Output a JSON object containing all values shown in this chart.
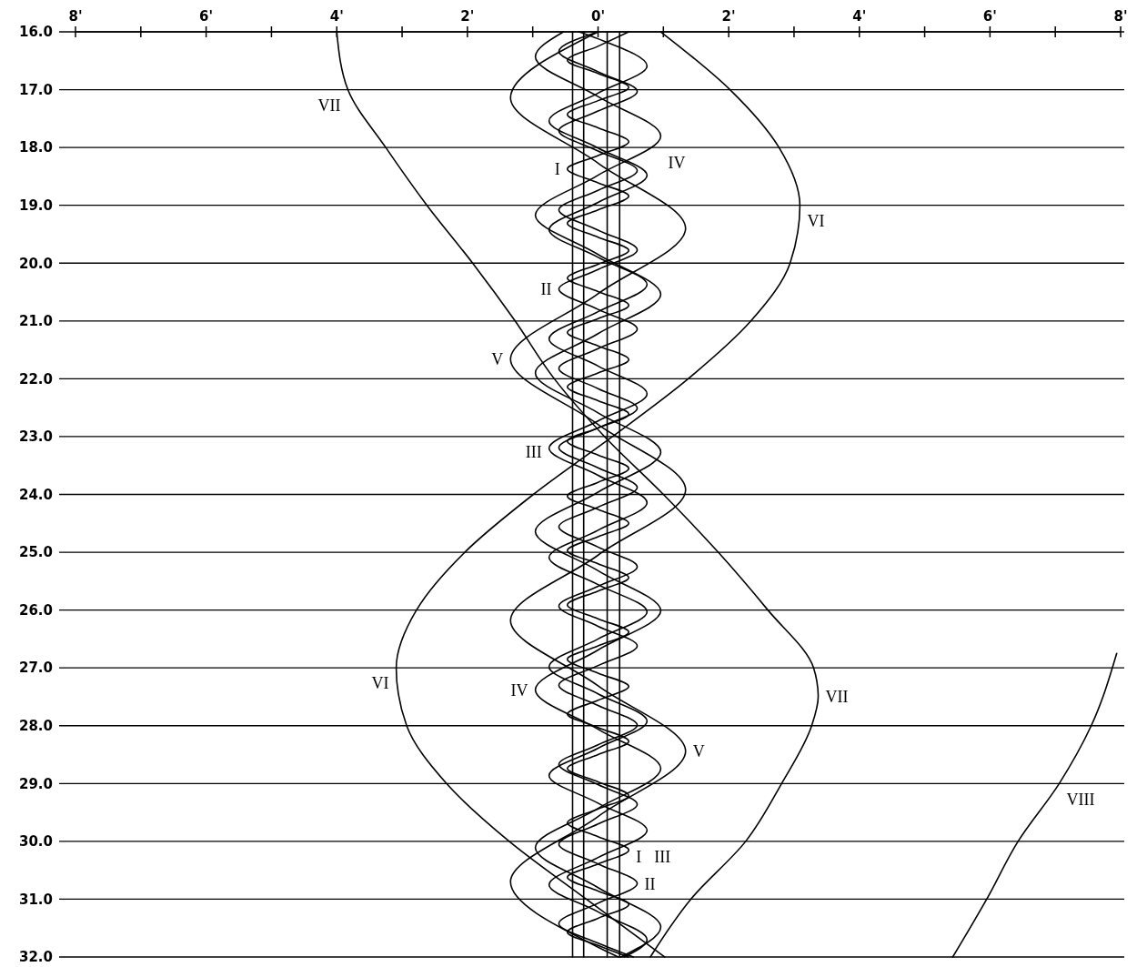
{
  "chart_data": {
    "type": "line",
    "xlim": [
      -8,
      8
    ],
    "ylim": [
      32,
      16
    ],
    "xticks": [
      {
        "value": -8,
        "label": "8'"
      },
      {
        "value": -7,
        "label": null
      },
      {
        "value": -6,
        "label": "6'"
      },
      {
        "value": -5,
        "label": null
      },
      {
        "value": -4,
        "label": "4'"
      },
      {
        "value": -3,
        "label": null
      },
      {
        "value": -2,
        "label": "2'"
      },
      {
        "value": -1,
        "label": null
      },
      {
        "value": 0,
        "label": "0'"
      },
      {
        "value": 1,
        "label": null
      },
      {
        "value": 2,
        "label": "2'"
      },
      {
        "value": 3,
        "label": null
      },
      {
        "value": 4,
        "label": "4'"
      },
      {
        "value": 5,
        "label": null
      },
      {
        "value": 6,
        "label": "6'"
      },
      {
        "value": 7,
        "label": null
      },
      {
        "value": 8,
        "label": "8'"
      }
    ],
    "yticks": [
      {
        "value": 16,
        "label": "16.0"
      },
      {
        "value": 17,
        "label": "17.0"
      },
      {
        "value": 18,
        "label": "18.0"
      },
      {
        "value": 19,
        "label": "19.0"
      },
      {
        "value": 20,
        "label": "20.0"
      },
      {
        "value": 21,
        "label": "21.0"
      },
      {
        "value": 22,
        "label": "22.0"
      },
      {
        "value": 23,
        "label": "23.0"
      },
      {
        "value": 24,
        "label": "24.0"
      },
      {
        "value": 25,
        "label": "25.0"
      },
      {
        "value": 26,
        "label": "26.0"
      },
      {
        "value": 27,
        "label": "27.0"
      },
      {
        "value": 28,
        "label": "28.0"
      },
      {
        "value": 29,
        "label": "29.0"
      },
      {
        "value": 30,
        "label": "30.0"
      },
      {
        "value": 31,
        "label": "31.0"
      },
      {
        "value": 32,
        "label": "32.0"
      }
    ],
    "grid": "y",
    "series": [
      {
        "color": "#000000",
        "x": [
          -0.39,
          -0.39
        ],
        "values": [
          16,
          32
        ]
      },
      {
        "color": "#000000",
        "x": [
          -0.22,
          -0.22
        ],
        "values": [
          16,
          32
        ]
      },
      {
        "color": "#000000",
        "x": [
          0.14,
          0.14
        ],
        "values": [
          16,
          32
        ]
      },
      {
        "color": "#000000",
        "x": [
          0.33,
          0.33
        ],
        "values": [
          16,
          32
        ]
      },
      {
        "color": "#000000",
        "x": [
          0.47,
          0,
          -0.47,
          0,
          0.47,
          0,
          -0.47,
          0,
          0.47,
          0,
          -0.47,
          0,
          0.47,
          0,
          -0.47,
          0,
          0.47,
          0,
          -0.47,
          0,
          0.47,
          0,
          -0.47,
          0,
          0.47,
          0,
          -0.47,
          0,
          0.47,
          0,
          -0.47,
          0,
          0.47,
          0,
          -0.47,
          0,
          0.47,
          0,
          -0.47,
          0,
          0.47,
          0,
          -0.47,
          0,
          0.47,
          0,
          -0.47,
          0,
          0.47,
          0,
          -0.47,
          0,
          0.47,
          0,
          -0.47,
          0,
          0.47,
          0,
          -0.47,
          0,
          0.47,
          0,
          -0.47,
          0,
          0.47,
          0,
          -0.47,
          0,
          0.46
        ],
        "values": [
          16.0,
          16.25,
          16.49,
          16.72,
          16.96,
          17.19,
          17.43,
          17.66,
          17.9,
          18.14,
          18.37,
          18.61,
          18.84,
          19.08,
          19.31,
          19.55,
          19.78,
          20.02,
          20.26,
          20.49,
          20.73,
          20.96,
          21.2,
          21.43,
          21.67,
          21.9,
          22.14,
          22.38,
          22.61,
          22.85,
          23.08,
          23.32,
          23.55,
          23.79,
          24.03,
          24.26,
          24.5,
          24.73,
          24.97,
          25.2,
          25.44,
          25.67,
          25.91,
          26.15,
          26.38,
          26.62,
          26.85,
          27.09,
          27.32,
          27.56,
          27.8,
          28.03,
          28.27,
          28.5,
          28.74,
          28.97,
          29.21,
          29.44,
          29.68,
          29.92,
          30.15,
          30.39,
          30.62,
          30.86,
          31.09,
          31.33,
          31.57,
          31.8,
          32.0
        ]
      },
      {
        "color": "#000000",
        "x": [
          0,
          -0.6,
          0,
          0.6,
          0,
          -0.6,
          0,
          0.6,
          0,
          -0.6,
          0,
          0.6,
          0,
          -0.6,
          0,
          0.6,
          0,
          -0.6,
          0,
          0.6,
          0,
          -0.6,
          0,
          0.6,
          0,
          -0.6,
          0,
          0.6,
          0,
          -0.6,
          0,
          0.6,
          0,
          -0.6,
          0,
          0.6,
          0,
          -0.6,
          0,
          0.6,
          0,
          -0.6,
          0,
          0.6,
          0,
          -0.6,
          0,
          0.54
        ],
        "values": [
          16.0,
          16.34,
          16.69,
          17.03,
          17.37,
          17.71,
          18.06,
          18.4,
          18.74,
          19.08,
          19.43,
          19.77,
          20.11,
          20.45,
          20.8,
          21.14,
          21.48,
          21.82,
          22.17,
          22.51,
          22.85,
          23.19,
          23.54,
          23.88,
          24.22,
          24.56,
          24.91,
          25.25,
          25.59,
          25.93,
          26.28,
          26.62,
          26.96,
          27.3,
          27.65,
          27.99,
          28.33,
          28.67,
          29.02,
          29.36,
          29.7,
          30.05,
          30.39,
          30.73,
          31.07,
          31.42,
          31.76,
          32.0
        ]
      },
      {
        "color": "#000000",
        "x": [
          -0.29,
          0,
          0.75,
          0,
          -0.75,
          0,
          0.75,
          0,
          -0.75,
          0,
          0.75,
          0,
          -0.75,
          0,
          0.75,
          0,
          -0.75,
          0,
          0.75,
          0,
          -0.75,
          0,
          0.75,
          0,
          -0.75,
          0,
          0.75,
          0,
          -0.75,
          0,
          0.75,
          0,
          -0.75,
          0,
          0.75,
          0.4
        ],
        "values": [
          16.0,
          16.12,
          16.59,
          17.06,
          17.54,
          18.01,
          18.48,
          18.95,
          19.42,
          19.9,
          20.37,
          20.84,
          21.31,
          21.78,
          22.26,
          22.73,
          23.2,
          23.67,
          24.14,
          24.62,
          25.09,
          25.56,
          26.03,
          26.5,
          26.98,
          27.45,
          27.92,
          28.39,
          28.86,
          29.34,
          29.81,
          30.28,
          30.75,
          31.22,
          31.7,
          32.0
        ]
      },
      {
        "color": "#000000",
        "x": [
          -0.53,
          -0.96,
          0,
          0.96,
          0,
          -0.96,
          0,
          0.96,
          0,
          -0.96,
          0,
          0.96,
          0,
          -0.96,
          0,
          0.96,
          0,
          -0.96,
          0,
          0.96,
          0,
          -0.96,
          0,
          0.96,
          0.35
        ],
        "values": [
          16.0,
          16.43,
          17.12,
          17.8,
          18.48,
          19.17,
          19.85,
          20.54,
          21.22,
          21.9,
          22.59,
          23.27,
          23.96,
          24.64,
          25.32,
          26.01,
          26.69,
          27.38,
          28.06,
          28.74,
          29.43,
          30.11,
          30.8,
          31.48,
          32.0
        ]
      },
      {
        "color": "#000000",
        "x": [
          0,
          -1.34,
          0,
          1.34,
          0,
          -1.34,
          0,
          1.34,
          0,
          -1.34,
          0,
          1.34,
          0,
          -1.34,
          0,
          0.31
        ],
        "values": [
          16.0,
          17.14,
          18.27,
          19.4,
          20.53,
          21.66,
          22.79,
          23.92,
          25.05,
          26.18,
          27.31,
          28.44,
          29.57,
          30.7,
          31.83,
          32.0
        ]
      },
      {
        "color": "#000000",
        "x": [
          0.96,
          2.02,
          2.77,
          3.09,
          2.94,
          2.34,
          1.38,
          0.22,
          -0.99,
          -2.04,
          -2.78,
          -3.09,
          -2.93,
          -2.32,
          -1.36,
          -0.18,
          1.02
        ],
        "values": [
          16,
          17,
          18,
          19,
          20,
          21,
          22,
          23,
          24,
          25,
          26,
          27,
          28,
          29,
          30,
          31,
          32
        ]
      },
      {
        "color": "#000000",
        "x": [
          -4.0,
          -3.83,
          -3.25,
          -2.62,
          -1.92,
          -1.27,
          -0.67,
          0.1,
          1.0,
          1.84,
          2.6,
          3.3,
          3.37,
          3.27,
          2.81,
          2.26,
          1.42,
          0.8
        ],
        "values": [
          16,
          17,
          18,
          19,
          20,
          21,
          22,
          23,
          24,
          25,
          26,
          27,
          27.5,
          28,
          29,
          30,
          31,
          32
        ]
      },
      {
        "color": "#000000",
        "x": [
          7.94,
          7.55,
          7.06,
          6.43,
          5.95,
          5.43
        ],
        "values": [
          26.75,
          28,
          29,
          30,
          31,
          32
        ]
      }
    ],
    "annotations": [
      {
        "text": "VII",
        "x": -3.83,
        "y": 17
      },
      {
        "text": "IV",
        "x": 0.96,
        "y": 17.8
      },
      {
        "text": "I",
        "x": -0.47,
        "y": 18.37
      },
      {
        "text": "VI",
        "x": 3.09,
        "y": 19
      },
      {
        "text": "II",
        "x": -0.6,
        "y": 20.45
      },
      {
        "text": "V",
        "x": -1.34,
        "y": 21.66
      },
      {
        "text": "III",
        "x": -0.75,
        "y": 23.2
      },
      {
        "text": "VI",
        "x": -3.09,
        "y": 27
      },
      {
        "text": "VII",
        "x": 3.37,
        "y": 27.5
      },
      {
        "text": "IV",
        "x": -0.96,
        "y": 27.38
      },
      {
        "text": "V",
        "x": 1.34,
        "y": 28.44
      },
      {
        "text": "VIII",
        "x": 7.06,
        "y": 29
      },
      {
        "text": "III",
        "x": 0.75,
        "y": 29.81
      },
      {
        "text": "I",
        "x": 0.47,
        "y": 30.15
      },
      {
        "text": "II",
        "x": 0.6,
        "y": 30.73
      }
    ]
  }
}
